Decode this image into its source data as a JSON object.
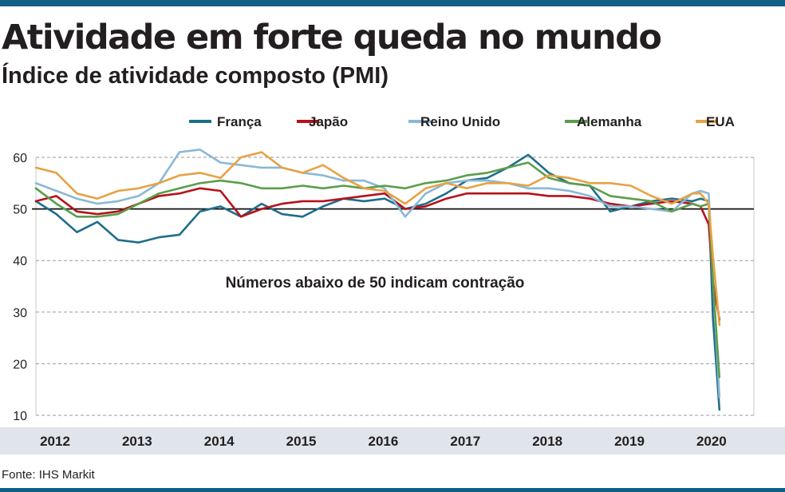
{
  "title": "Atividade em forte queda no mundo",
  "subtitle": "Índice de atividade composto (PMI)",
  "source": "Fonte: IHS Markit",
  "chart_data": {
    "type": "line",
    "annotation": "Números abaixo de 50 indicam contração",
    "reference_line": 50,
    "ylim": [
      10,
      60
    ],
    "yticks": [
      10,
      20,
      30,
      40,
      50,
      60
    ],
    "xlim": [
      2012,
      2020.75
    ],
    "xticks": [
      "2012",
      "2013",
      "2014",
      "2015",
      "2016",
      "2017",
      "2018",
      "2019",
      "2020"
    ],
    "grid": true,
    "legend_position": "top",
    "series": [
      {
        "name": "França",
        "color": "#1f6e8c",
        "points": [
          [
            2012,
            51.5
          ],
          [
            2012.25,
            49
          ],
          [
            2012.5,
            45.5
          ],
          [
            2012.75,
            47.5
          ],
          [
            2013,
            44
          ],
          [
            2013.25,
            43.5
          ],
          [
            2013.5,
            44.5
          ],
          [
            2013.75,
            45
          ],
          [
            2014,
            49.5
          ],
          [
            2014.25,
            50.5
          ],
          [
            2014.5,
            48.5
          ],
          [
            2014.75,
            51
          ],
          [
            2015,
            49
          ],
          [
            2015.25,
            48.5
          ],
          [
            2015.5,
            50.5
          ],
          [
            2015.75,
            52
          ],
          [
            2016,
            51.5
          ],
          [
            2016.25,
            52
          ],
          [
            2016.5,
            50
          ],
          [
            2016.75,
            51
          ],
          [
            2017,
            53
          ],
          [
            2017.25,
            55.5
          ],
          [
            2017.5,
            56
          ],
          [
            2017.75,
            58
          ],
          [
            2018,
            60.5
          ],
          [
            2018.25,
            57
          ],
          [
            2018.5,
            55
          ],
          [
            2018.75,
            54.5
          ],
          [
            2019,
            49.5
          ],
          [
            2019.25,
            50.5
          ],
          [
            2019.5,
            51.5
          ],
          [
            2019.75,
            52
          ],
          [
            2020,
            51.5
          ],
          [
            2020.1,
            52
          ],
          [
            2020.2,
            51.5
          ],
          [
            2020.25,
            29
          ],
          [
            2020.33,
            11.1
          ]
        ]
      },
      {
        "name": "Japão",
        "color": "#b5121b",
        "points": [
          [
            2012,
            51.5
          ],
          [
            2012.25,
            52.5
          ],
          [
            2012.5,
            49.5
          ],
          [
            2012.75,
            49
          ],
          [
            2013,
            49.5
          ],
          [
            2013.25,
            51
          ],
          [
            2013.5,
            52.5
          ],
          [
            2013.75,
            53
          ],
          [
            2014,
            54
          ],
          [
            2014.25,
            53.5
          ],
          [
            2014.5,
            48.5
          ],
          [
            2014.75,
            50
          ],
          [
            2015,
            51
          ],
          [
            2015.25,
            51.5
          ],
          [
            2015.5,
            51.5
          ],
          [
            2015.75,
            52
          ],
          [
            2016,
            52.5
          ],
          [
            2016.25,
            53
          ],
          [
            2016.5,
            50
          ],
          [
            2016.75,
            50.5
          ],
          [
            2017,
            52
          ],
          [
            2017.25,
            53
          ],
          [
            2017.5,
            53
          ],
          [
            2017.75,
            53
          ],
          [
            2018,
            53
          ],
          [
            2018.25,
            52.5
          ],
          [
            2018.5,
            52.5
          ],
          [
            2018.75,
            52
          ],
          [
            2019,
            51
          ],
          [
            2019.25,
            50.5
          ],
          [
            2019.5,
            51
          ],
          [
            2019.75,
            51.5
          ],
          [
            2020,
            51
          ],
          [
            2020.1,
            50.5
          ],
          [
            2020.2,
            47
          ],
          [
            2020.25,
            36
          ],
          [
            2020.33,
            28.5
          ]
        ]
      },
      {
        "name": "Reino Unido",
        "color": "#8ab8d5",
        "points": [
          [
            2012,
            55
          ],
          [
            2012.25,
            53.5
          ],
          [
            2012.5,
            52
          ],
          [
            2012.75,
            51
          ],
          [
            2013,
            51.5
          ],
          [
            2013.25,
            52.5
          ],
          [
            2013.5,
            55
          ],
          [
            2013.75,
            61
          ],
          [
            2014,
            61.5
          ],
          [
            2014.25,
            59
          ],
          [
            2014.5,
            58.5
          ],
          [
            2014.75,
            58
          ],
          [
            2015,
            58
          ],
          [
            2015.25,
            57
          ],
          [
            2015.5,
            56.5
          ],
          [
            2015.75,
            55.5
          ],
          [
            2016,
            55.5
          ],
          [
            2016.25,
            54
          ],
          [
            2016.5,
            48.5
          ],
          [
            2016.75,
            53
          ],
          [
            2017,
            55
          ],
          [
            2017.25,
            55.5
          ],
          [
            2017.5,
            55.5
          ],
          [
            2017.75,
            55
          ],
          [
            2018,
            54
          ],
          [
            2018.25,
            54
          ],
          [
            2018.5,
            53.5
          ],
          [
            2018.75,
            52.5
          ],
          [
            2019,
            50.5
          ],
          [
            2019.25,
            50.5
          ],
          [
            2019.5,
            50
          ],
          [
            2019.75,
            49.5
          ],
          [
            2020,
            53
          ],
          [
            2020.1,
            53.5
          ],
          [
            2020.2,
            53
          ],
          [
            2020.25,
            37
          ],
          [
            2020.33,
            13.5
          ]
        ]
      },
      {
        "name": "Alemanha",
        "color": "#5a9e4b",
        "points": [
          [
            2012,
            54
          ],
          [
            2012.25,
            51
          ],
          [
            2012.5,
            48.5
          ],
          [
            2012.75,
            48.5
          ],
          [
            2013,
            49
          ],
          [
            2013.25,
            51
          ],
          [
            2013.5,
            53
          ],
          [
            2013.75,
            54
          ],
          [
            2014,
            55
          ],
          [
            2014.25,
            55.5
          ],
          [
            2014.5,
            55
          ],
          [
            2014.75,
            54
          ],
          [
            2015,
            54
          ],
          [
            2015.25,
            54.5
          ],
          [
            2015.5,
            54
          ],
          [
            2015.75,
            54.5
          ],
          [
            2016,
            54
          ],
          [
            2016.25,
            54.5
          ],
          [
            2016.5,
            54
          ],
          [
            2016.75,
            55
          ],
          [
            2017,
            55.5
          ],
          [
            2017.25,
            56.5
          ],
          [
            2017.5,
            57
          ],
          [
            2017.75,
            58
          ],
          [
            2018,
            59
          ],
          [
            2018.25,
            56
          ],
          [
            2018.5,
            55
          ],
          [
            2018.75,
            54.5
          ],
          [
            2019,
            52.5
          ],
          [
            2019.25,
            52
          ],
          [
            2019.5,
            51.5
          ],
          [
            2019.75,
            49.5
          ],
          [
            2020,
            51
          ],
          [
            2020.1,
            50.5
          ],
          [
            2020.2,
            51
          ],
          [
            2020.25,
            36
          ],
          [
            2020.33,
            17.4
          ]
        ]
      },
      {
        "name": "EUA",
        "color": "#e7a243",
        "points": [
          [
            2012,
            58
          ],
          [
            2012.25,
            57
          ],
          [
            2012.5,
            53
          ],
          [
            2012.75,
            52
          ],
          [
            2013,
            53.5
          ],
          [
            2013.25,
            54
          ],
          [
            2013.5,
            55
          ],
          [
            2013.75,
            56.5
          ],
          [
            2014,
            57
          ],
          [
            2014.25,
            56
          ],
          [
            2014.5,
            60
          ],
          [
            2014.75,
            61
          ],
          [
            2015,
            58
          ],
          [
            2015.25,
            57
          ],
          [
            2015.5,
            58.5
          ],
          [
            2015.75,
            56
          ],
          [
            2016,
            54
          ],
          [
            2016.25,
            53.5
          ],
          [
            2016.5,
            51
          ],
          [
            2016.75,
            54
          ],
          [
            2017,
            55
          ],
          [
            2017.25,
            54
          ],
          [
            2017.5,
            55
          ],
          [
            2017.75,
            55
          ],
          [
            2018,
            54.5
          ],
          [
            2018.25,
            56.5
          ],
          [
            2018.5,
            56
          ],
          [
            2018.75,
            55
          ],
          [
            2019,
            55
          ],
          [
            2019.25,
            54.5
          ],
          [
            2019.5,
            52.5
          ],
          [
            2019.75,
            51
          ],
          [
            2020,
            53
          ],
          [
            2020.1,
            53
          ],
          [
            2020.2,
            51
          ],
          [
            2020.25,
            41
          ],
          [
            2020.33,
            27.5
          ]
        ]
      }
    ]
  }
}
